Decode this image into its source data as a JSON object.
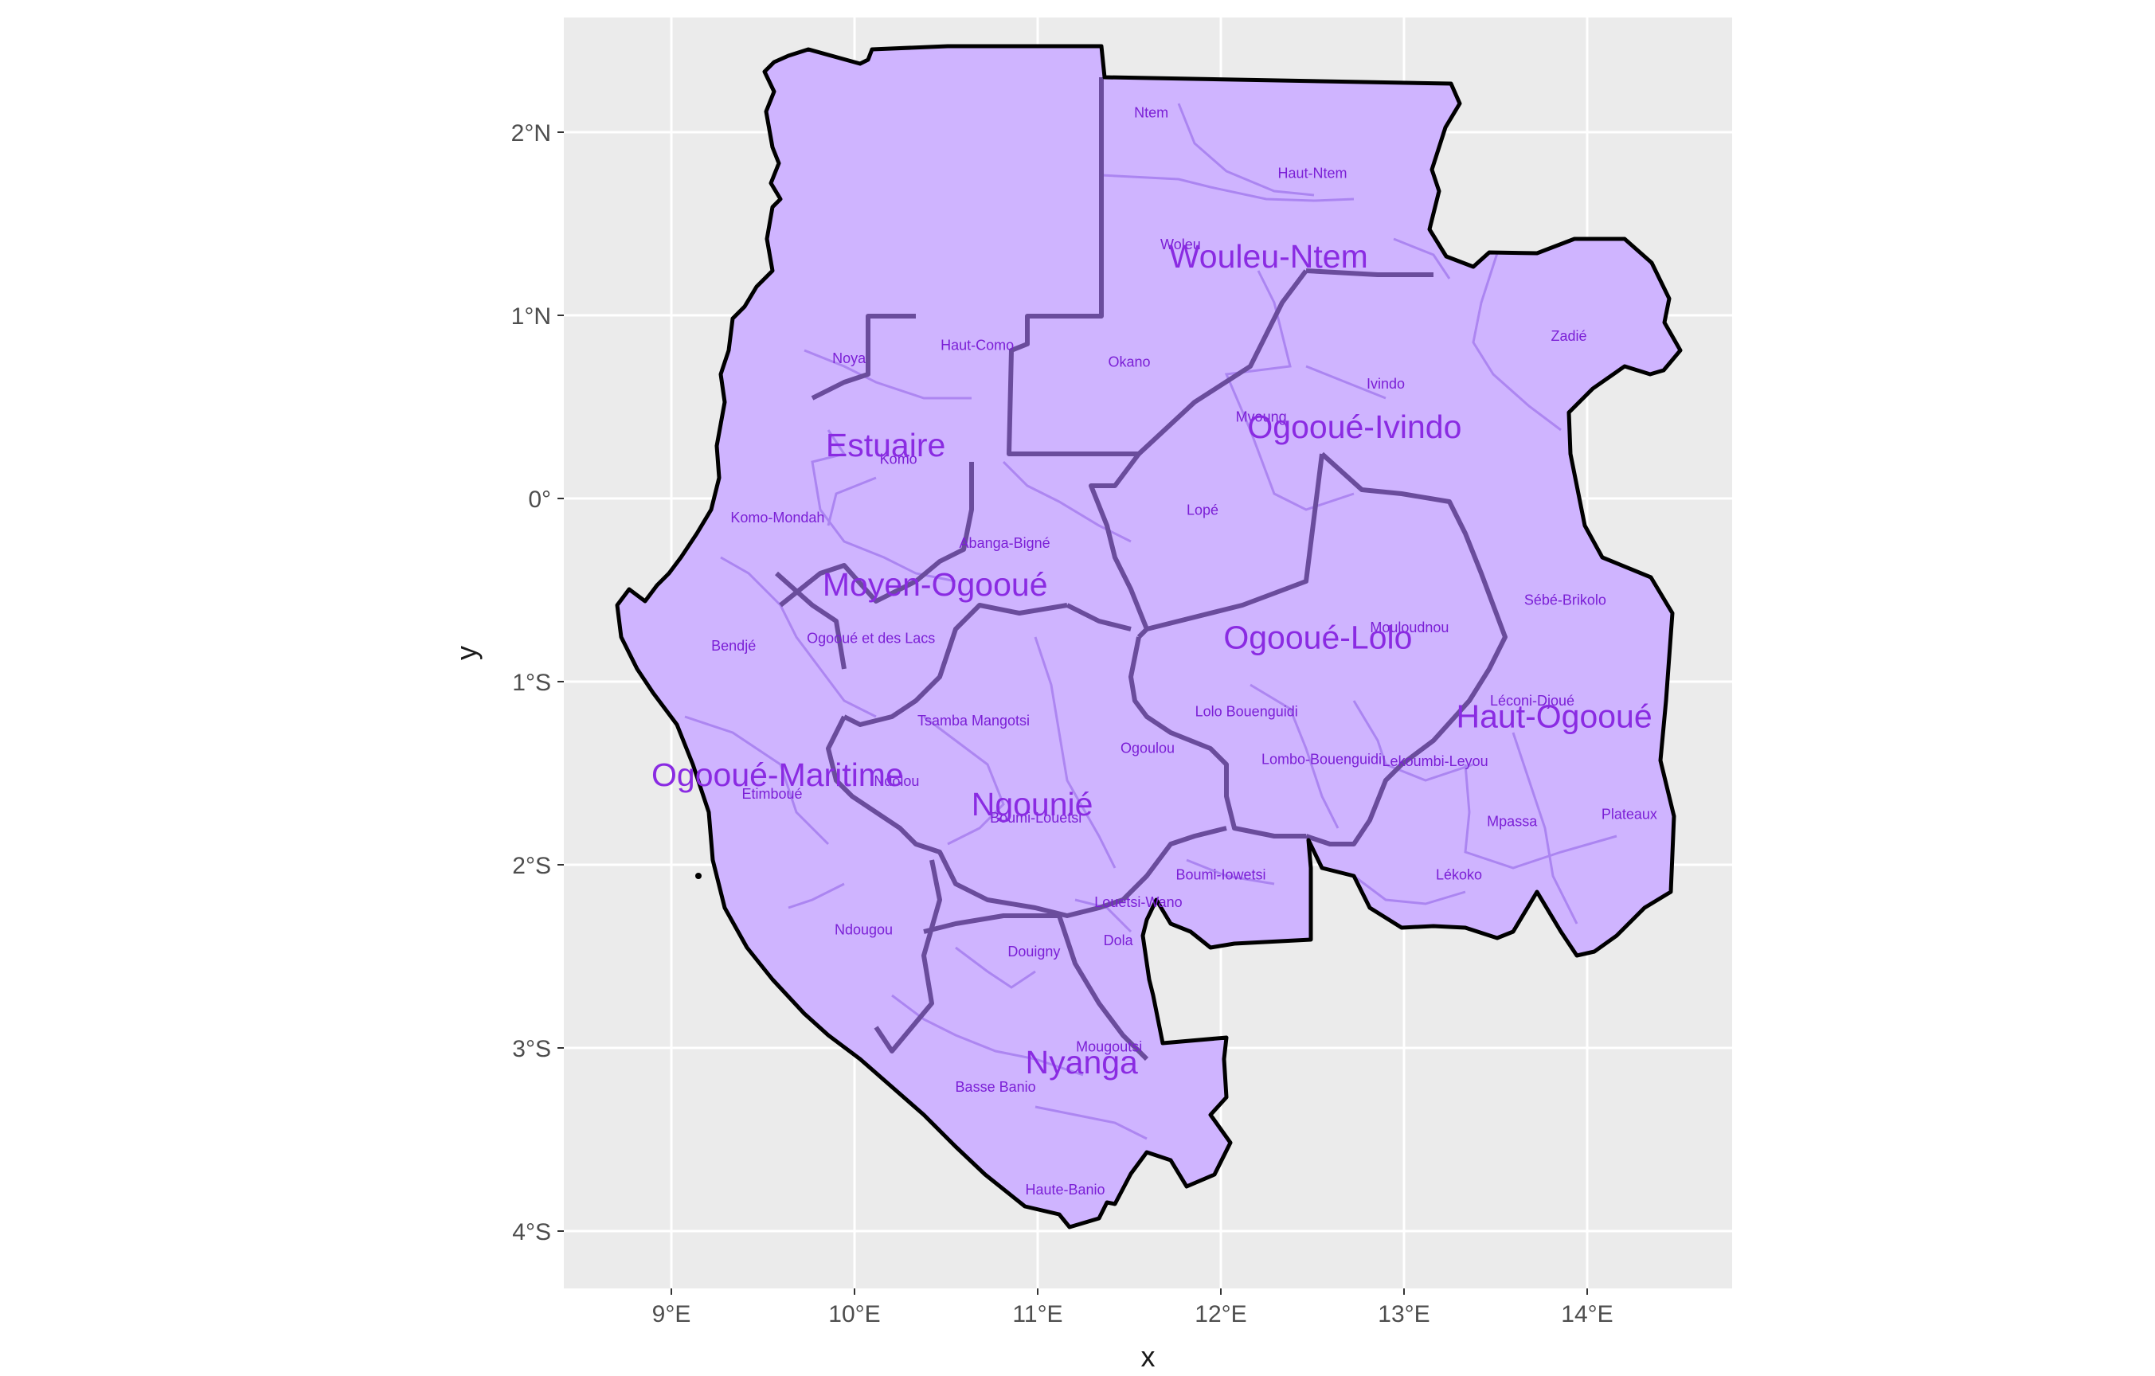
{
  "chart_data": {
    "type": "map",
    "xlabel": "x",
    "ylabel": "y",
    "xlim": [
      8.4,
      14.8
    ],
    "ylim": [
      -4.3,
      2.65
    ],
    "x_ticks": [
      {
        "value": 9,
        "label": "9°E"
      },
      {
        "value": 10,
        "label": "10°E"
      },
      {
        "value": 11,
        "label": "11°E"
      },
      {
        "value": 12,
        "label": "12°E"
      },
      {
        "value": 13,
        "label": "13°E"
      },
      {
        "value": 14,
        "label": "14°E"
      }
    ],
    "y_ticks": [
      {
        "value": 2,
        "label": "2°N"
      },
      {
        "value": 1,
        "label": "1°N"
      },
      {
        "value": 0,
        "label": "0°"
      },
      {
        "value": -1,
        "label": "1°S"
      },
      {
        "value": -2,
        "label": "2°S"
      },
      {
        "value": -3,
        "label": "3°S"
      },
      {
        "value": -4,
        "label": "4°S"
      }
    ],
    "grid": true,
    "colors": {
      "panel": "#ebebeb",
      "grid": "#ffffff",
      "fill": "#cfb4ff",
      "province_border": "#6a4c9c",
      "country_border": "#000000",
      "province_label": "#8a2be2",
      "department_label": "#7b1fd6"
    },
    "provinces": [
      {
        "name": "Wouleu-Ntem",
        "lon": 12.26,
        "lat": 1.26
      },
      {
        "name": "Estuaire",
        "lon": 10.17,
        "lat": 0.23
      },
      {
        "name": "Ogooué-Ivindo",
        "lon": 12.73,
        "lat": 0.33
      },
      {
        "name": "Moyen-Ogooué",
        "lon": 10.44,
        "lat": -0.53
      },
      {
        "name": "Ogooué-Lolo",
        "lon": 12.53,
        "lat": -0.82
      },
      {
        "name": "Haut-Ogooué",
        "lon": 13.82,
        "lat": -1.25
      },
      {
        "name": "Ogooué-Maritime",
        "lon": 9.58,
        "lat": -1.57
      },
      {
        "name": "Ngounié",
        "lon": 10.97,
        "lat": -1.73
      },
      {
        "name": "Nyanga",
        "lon": 11.24,
        "lat": -3.14
      }
    ],
    "departments": [
      {
        "name": "Ntem",
        "lon": 11.62,
        "lat": 2.08
      },
      {
        "name": "Haut-Ntem",
        "lon": 12.5,
        "lat": 1.75
      },
      {
        "name": "Woleu",
        "lon": 11.78,
        "lat": 1.36
      },
      {
        "name": "Zadié",
        "lon": 13.9,
        "lat": 0.86
      },
      {
        "name": "Noya",
        "lon": 9.97,
        "lat": 0.74
      },
      {
        "name": "Haut-Como",
        "lon": 10.67,
        "lat": 0.81
      },
      {
        "name": "Okano",
        "lon": 11.5,
        "lat": 0.72
      },
      {
        "name": "Ivindo",
        "lon": 12.9,
        "lat": 0.6
      },
      {
        "name": "Mvoung",
        "lon": 12.22,
        "lat": 0.42
      },
      {
        "name": "Komo",
        "lon": 10.24,
        "lat": 0.19
      },
      {
        "name": "Lopé",
        "lon": 11.9,
        "lat": -0.09
      },
      {
        "name": "Komo-Mondah",
        "lon": 9.58,
        "lat": -0.13
      },
      {
        "name": "Abanga-Bigné",
        "lon": 10.82,
        "lat": -0.27
      },
      {
        "name": "Sébé-Brikolo",
        "lon": 13.88,
        "lat": -0.58
      },
      {
        "name": "Mouloudnou",
        "lon": 13.03,
        "lat": -0.73
      },
      {
        "name": "Ogooué et des Lacs",
        "lon": 10.09,
        "lat": -0.79
      },
      {
        "name": "Bendjé",
        "lon": 9.34,
        "lat": -0.83
      },
      {
        "name": "Léconi-Djoué",
        "lon": 13.7,
        "lat": -1.13
      },
      {
        "name": "Lolo Bouenguidi",
        "lon": 12.14,
        "lat": -1.19
      },
      {
        "name": "Tsamba Mangotsi",
        "lon": 10.65,
        "lat": -1.24
      },
      {
        "name": "Ogoulou",
        "lon": 11.6,
        "lat": -1.39
      },
      {
        "name": "Lombo-Bouenguidi",
        "lon": 12.55,
        "lat": -1.45
      },
      {
        "name": "Lekoumbi-Leyou",
        "lon": 13.17,
        "lat": -1.46
      },
      {
        "name": "Etimboué",
        "lon": 9.55,
        "lat": -1.64
      },
      {
        "name": "Ndolou",
        "lon": 10.23,
        "lat": -1.57
      },
      {
        "name": "Boumi-Louetsi",
        "lon": 10.99,
        "lat": -1.77
      },
      {
        "name": "Plateaux",
        "lon": 14.23,
        "lat": -1.75
      },
      {
        "name": "Mpassa",
        "lon": 13.59,
        "lat": -1.79
      },
      {
        "name": "Boumi-Iowetsi",
        "lon": 12.0,
        "lat": -2.08
      },
      {
        "name": "Lékoko",
        "lon": 13.3,
        "lat": -2.08
      },
      {
        "name": "Louetsi-Wano",
        "lon": 11.55,
        "lat": -2.23
      },
      {
        "name": "Ndougou",
        "lon": 10.05,
        "lat": -2.38
      },
      {
        "name": "Dola",
        "lon": 11.44,
        "lat": -2.44
      },
      {
        "name": "Douigny",
        "lon": 10.98,
        "lat": -2.5
      },
      {
        "name": "Mougoutsi",
        "lon": 11.39,
        "lat": -3.02
      },
      {
        "name": "Basse Banio",
        "lon": 10.77,
        "lat": -3.24
      },
      {
        "name": "Haute-Banio",
        "lon": 11.15,
        "lat": -3.8
      }
    ]
  }
}
